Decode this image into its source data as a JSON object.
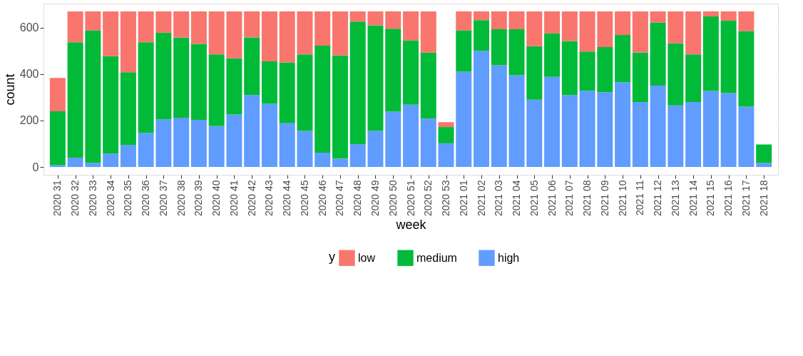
{
  "chart_data": {
    "type": "bar",
    "stacked": true,
    "xlabel": "week",
    "ylabel": "count",
    "legend_title": "y",
    "legend": "bottom",
    "grid": true,
    "categories": [
      "2020 31",
      "2020 32",
      "2020 33",
      "2020 34",
      "2020 35",
      "2020 36",
      "2020 37",
      "2020 38",
      "2020 39",
      "2020 40",
      "2020 41",
      "2020 42",
      "2020 43",
      "2020 44",
      "2020 45",
      "2020 46",
      "2020 47",
      "2020 48",
      "2020 49",
      "2020 50",
      "2020 51",
      "2020 52",
      "2020 53",
      "2021 01",
      "2021 02",
      "2021 03",
      "2021 04",
      "2021 05",
      "2021 06",
      "2021 07",
      "2021 08",
      "2021 09",
      "2021 10",
      "2021 11",
      "2021 12",
      "2021 13",
      "2021 14",
      "2021 15",
      "2021 16",
      "2021 17",
      "2021 18"
    ],
    "ylim": [
      -33.5,
      703.5
    ],
    "yticks": [
      0,
      200,
      400,
      600
    ],
    "series": [
      {
        "name": "high",
        "color": "#619cff",
        "values": [
          8,
          40,
          18,
          58,
          95,
          147,
          205,
          212,
          203,
          176,
          226,
          310,
          272,
          188,
          155,
          62,
          36,
          98,
          155,
          238,
          268,
          208,
          102,
          410,
          500,
          438,
          395,
          290,
          388,
          310,
          328,
          322,
          365,
          280,
          350,
          265,
          280,
          327,
          318,
          260,
          18
        ]
      },
      {
        "name": "medium",
        "color": "#00ba38",
        "values": [
          232,
          497,
          570,
          419,
          313,
          390,
          373,
          345,
          327,
          309,
          242,
          248,
          183,
          262,
          330,
          460,
          444,
          528,
          455,
          357,
          277,
          284,
          70,
          178,
          132,
          155,
          198,
          230,
          187,
          232,
          169,
          194,
          203,
          212,
          272,
          267,
          205,
          321,
          312,
          325,
          79
        ]
      },
      {
        "name": "low",
        "color": "#f8766d",
        "values": [
          143,
          133,
          82,
          193,
          262,
          133,
          92,
          113,
          140,
          185,
          202,
          112,
          215,
          220,
          185,
          148,
          190,
          44,
          60,
          75,
          125,
          178,
          21,
          82,
          38,
          77,
          77,
          150,
          95,
          128,
          173,
          154,
          102,
          178,
          48,
          138,
          185,
          22,
          40,
          85,
          null
        ]
      }
    ]
  }
}
